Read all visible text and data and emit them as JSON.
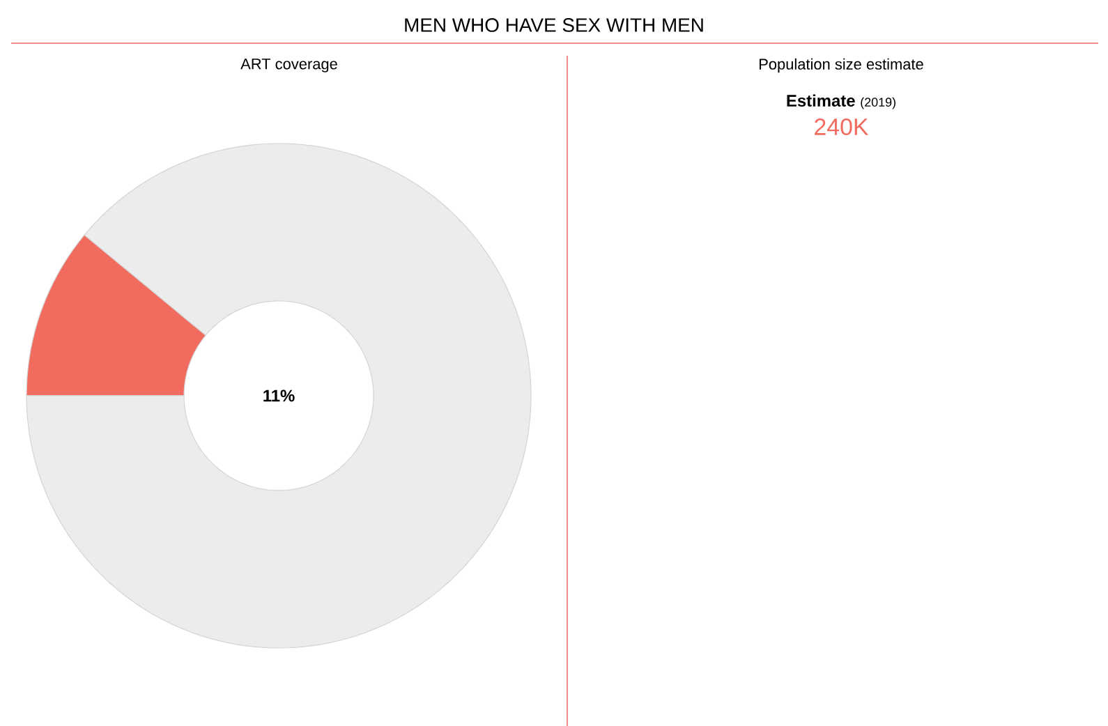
{
  "chart_data": [
    {
      "type": "other",
      "title": "MEN WHO HAVE SEX WITH MEN"
    },
    {
      "type": "donut",
      "title": "ART coverage",
      "categories": [
        null,
        null
      ],
      "values": [
        11,
        89
      ],
      "colors": [
        "#f26b5f",
        "#ececec"
      ],
      "annotations": [
        "11%"
      ]
    },
    {
      "type": "other",
      "title": "Population size estimate",
      "annotations": [
        "Estimate",
        "(2019)",
        "240K"
      ]
    }
  ]
}
